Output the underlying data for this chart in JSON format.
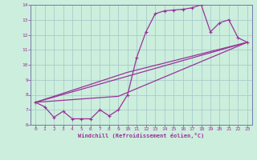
{
  "xlabel": "Windchill (Refroidissement éolien,°C)",
  "bg_color": "#cceedd",
  "grid_color": "#aacccc",
  "line_color": "#993399",
  "spine_color": "#7777aa",
  "xlim": [
    -0.5,
    23.5
  ],
  "ylim": [
    6,
    14
  ],
  "xticks": [
    0,
    1,
    2,
    3,
    4,
    5,
    6,
    7,
    8,
    9,
    10,
    11,
    12,
    13,
    14,
    15,
    16,
    17,
    18,
    19,
    20,
    21,
    22,
    23
  ],
  "yticks": [
    6,
    7,
    8,
    9,
    10,
    11,
    12,
    13,
    14
  ],
  "series1_x": [
    0,
    1,
    2,
    3,
    4,
    5,
    6,
    7,
    8,
    9,
    10,
    11,
    12,
    13,
    14,
    15,
    16,
    17,
    18,
    19,
    20,
    21,
    22,
    23
  ],
  "series1_y": [
    7.5,
    7.2,
    6.5,
    6.9,
    6.4,
    6.4,
    6.4,
    7.0,
    6.6,
    7.0,
    8.0,
    10.5,
    12.2,
    13.4,
    13.6,
    13.65,
    13.7,
    13.8,
    14.0,
    12.2,
    12.8,
    13.0,
    11.8,
    11.5
  ],
  "trend1_x": [
    0,
    23
  ],
  "trend1_y": [
    7.5,
    11.5
  ],
  "trend2_x": [
    0,
    9,
    23
  ],
  "trend2_y": [
    7.5,
    7.9,
    11.5
  ],
  "trend3_x": [
    0,
    10,
    23
  ],
  "trend3_y": [
    7.5,
    9.5,
    11.5
  ]
}
